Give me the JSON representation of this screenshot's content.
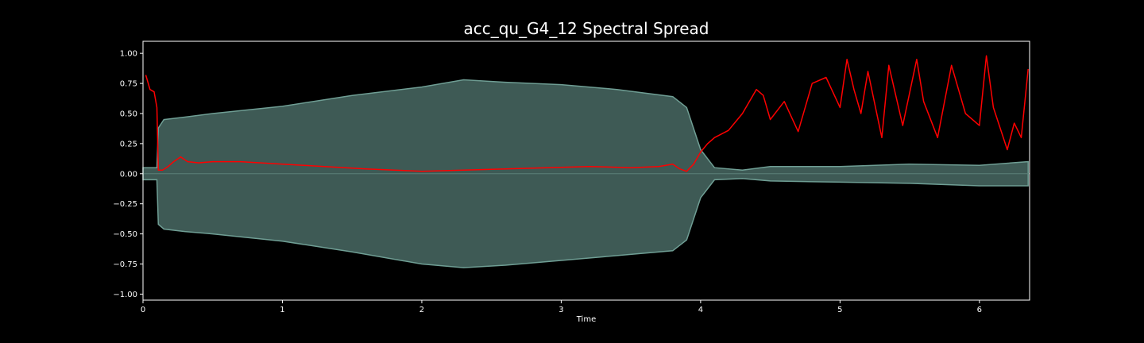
{
  "chart_data": {
    "type": "line",
    "title": "acc_qu_G4_12 Spectral Spread",
    "xlabel": "Time",
    "ylabel": "",
    "xlim": [
      0,
      6.36
    ],
    "ylim": [
      -1.05,
      1.1
    ],
    "x_ticks": [
      0,
      1,
      2,
      3,
      4,
      5,
      6
    ],
    "y_ticks": [
      1.0,
      0.75,
      0.5,
      0.25,
      0.0,
      -0.25,
      -0.5,
      -0.75,
      -1.0
    ],
    "x_tick_labels": [
      "0",
      "1",
      "2",
      "3",
      "4",
      "5",
      "6"
    ],
    "y_tick_labels": [
      "1.00",
      "0.75",
      "0.50",
      "0.25",
      "0.00",
      "−0.25",
      "−0.50",
      "−0.75",
      "−1.00"
    ],
    "grid": false,
    "legend": "none",
    "colors": {
      "background": "#000000",
      "waveform_fill": "#3e5a55",
      "waveform_edge": "#6f9e94",
      "spread_line": "#ff0000",
      "axes": "#ffffff",
      "zero_line": "#5b7f78"
    },
    "series": [
      {
        "kind": "waveform_envelope",
        "x": [
          0.0,
          0.1,
          0.11,
          0.15,
          0.3,
          0.5,
          1.0,
          1.5,
          2.0,
          2.3,
          2.6,
          3.0,
          3.4,
          3.8,
          3.9,
          4.0,
          4.1,
          4.3,
          4.5,
          5.0,
          5.5,
          6.0,
          6.35
        ],
        "upper": [
          0.05,
          0.05,
          0.38,
          0.45,
          0.47,
          0.5,
          0.56,
          0.65,
          0.72,
          0.78,
          0.76,
          0.74,
          0.7,
          0.64,
          0.55,
          0.2,
          0.05,
          0.03,
          0.06,
          0.06,
          0.08,
          0.07,
          0.1
        ],
        "lower": [
          -0.05,
          -0.05,
          -0.42,
          -0.46,
          -0.48,
          -0.5,
          -0.56,
          -0.65,
          -0.75,
          -0.78,
          -0.76,
          -0.72,
          -0.68,
          -0.64,
          -0.55,
          -0.2,
          -0.05,
          -0.04,
          -0.06,
          -0.07,
          -0.08,
          -0.1,
          -0.1
        ]
      },
      {
        "kind": "spectral_spread",
        "x": [
          0.02,
          0.05,
          0.08,
          0.1,
          0.11,
          0.14,
          0.18,
          0.22,
          0.27,
          0.32,
          0.4,
          0.5,
          0.7,
          1.0,
          1.3,
          1.6,
          1.8,
          2.0,
          2.3,
          2.6,
          2.9,
          3.2,
          3.5,
          3.7,
          3.8,
          3.85,
          3.9,
          3.95,
          4.0,
          4.05,
          4.1,
          4.2,
          4.3,
          4.4,
          4.45,
          4.5,
          4.6,
          4.7,
          4.8,
          4.9,
          5.0,
          5.05,
          5.1,
          5.15,
          5.2,
          5.3,
          5.35,
          5.45,
          5.55,
          5.6,
          5.7,
          5.8,
          5.9,
          6.0,
          6.05,
          6.1,
          6.2,
          6.25,
          6.3,
          6.35
        ],
        "y": [
          0.82,
          0.7,
          0.68,
          0.55,
          0.03,
          0.03,
          0.06,
          0.1,
          0.14,
          0.1,
          0.09,
          0.1,
          0.1,
          0.08,
          0.06,
          0.04,
          0.03,
          0.02,
          0.03,
          0.04,
          0.05,
          0.06,
          0.05,
          0.06,
          0.08,
          0.04,
          0.02,
          0.08,
          0.18,
          0.25,
          0.3,
          0.36,
          0.5,
          0.7,
          0.65,
          0.45,
          0.6,
          0.35,
          0.75,
          0.8,
          0.55,
          0.95,
          0.7,
          0.5,
          0.85,
          0.3,
          0.9,
          0.4,
          0.95,
          0.6,
          0.3,
          0.9,
          0.5,
          0.4,
          0.98,
          0.55,
          0.2,
          0.42,
          0.3,
          0.87
        ]
      }
    ]
  }
}
